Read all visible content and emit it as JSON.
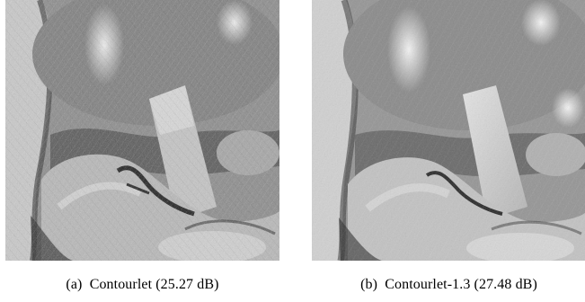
{
  "figures": [
    {
      "label": "(a)",
      "caption": "Contourlet (25.27 dB)",
      "image": "reconstructed grayscale image with directional artifacts"
    },
    {
      "label": "(b)",
      "caption": "Contourlet-1.3 (27.48 dB)",
      "image": "reconstructed grayscale image, smoother"
    }
  ]
}
